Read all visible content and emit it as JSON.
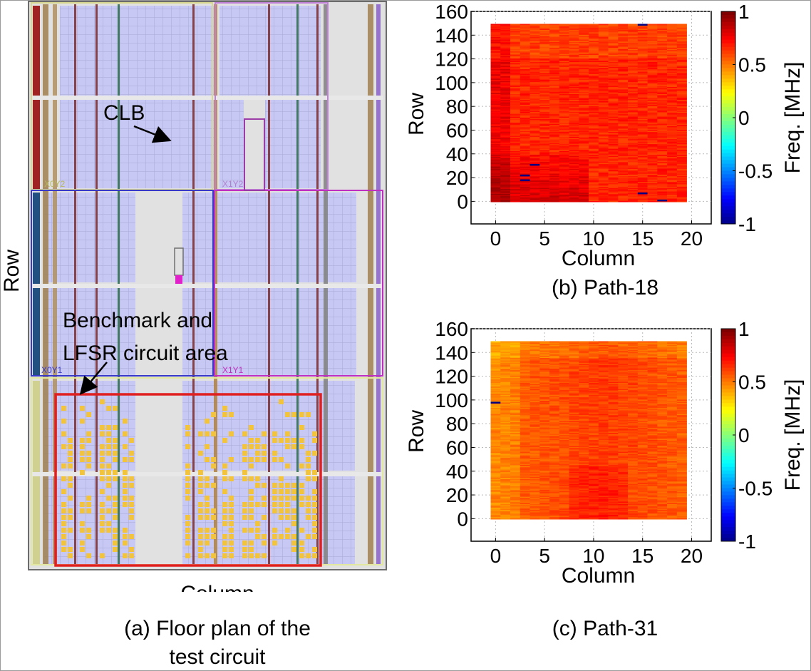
{
  "floorplan": {
    "ylabel": "Row",
    "xlabel": "Column",
    "caption_line1": "(a) Floor plan of the",
    "caption_line2": "test circuit",
    "clb_label": "CLB",
    "bench_line1": "Benchmark and",
    "bench_line2": "LFSR circuit area",
    "region_x0y2": "X0Y2",
    "region_x1y2": "X1Y2",
    "region_x0y1": "X0Y1",
    "region_x1y1": "X1Y1",
    "colors": {
      "clb": "#c8c8f4",
      "bg": "#e1e1e1",
      "highlight": "#e02020",
      "logic": "#f2c33c",
      "x0y2": "#d8d890",
      "x1y2": "#c080d8",
      "x0y1": "#3a3ac8",
      "x1y1": "#c030c0"
    }
  },
  "chart_data": [
    {
      "type": "heatmap",
      "caption": "(b) Path-18",
      "xlabel": "Column",
      "ylabel": "Row",
      "colorbar_label": "Freq. [MHz]",
      "x_range": [
        0,
        19
      ],
      "y_range": [
        0,
        149
      ],
      "xlim": [
        -2.5,
        22
      ],
      "ylim": [
        -19,
        160
      ],
      "xticks": [
        0,
        5,
        10,
        15,
        20
      ],
      "yticks": [
        0,
        20,
        40,
        60,
        80,
        100,
        120,
        140,
        160
      ],
      "clim": [
        -1,
        1
      ],
      "colorbar_ticks": [
        "1",
        "0.5",
        "0",
        "-0.5",
        "-1"
      ],
      "colorbar_values": [
        1,
        0.5,
        0,
        -0.5,
        -1
      ],
      "values": {
        "overall_mean": 0.68,
        "left_columns_mean": 0.8,
        "low_rows_bottom_left_mean": 0.9,
        "min": -1,
        "max": 0.95
      },
      "notes": "Mostly green (~0.6-0.75) with warmer yellow/orange values in low rows and leftmost columns; a few cells near -1 at (3,18),(3,22),(4,31),(15,149),(15,7),(17,1)"
    },
    {
      "type": "heatmap",
      "caption": "(c) Path-31",
      "xlabel": "Column",
      "ylabel": "Row",
      "colorbar_label": "Freq. [MHz]",
      "x_range": [
        0,
        19
      ],
      "y_range": [
        0,
        149
      ],
      "xlim": [
        -2.5,
        22
      ],
      "ylim": [
        -19,
        160
      ],
      "xticks": [
        0,
        5,
        10,
        15,
        20
      ],
      "yticks": [
        0,
        20,
        40,
        60,
        80,
        100,
        120,
        140,
        160
      ],
      "clim": [
        -1,
        1
      ],
      "colorbar_ticks": [
        "1",
        "0.5",
        "0",
        "-0.5",
        "-1"
      ],
      "colorbar_values": [
        1,
        0.5,
        0,
        -0.5,
        -1
      ],
      "values": {
        "overall_mean": 0.6,
        "left_columns_mean": 0.5,
        "center_mean": 0.68,
        "min": -1,
        "max": 0.85
      },
      "notes": "Cyan-green (~0.45-0.55) near edges and top, greener (~0.65-0.75) in centre columns 6-16; single dark cell at (0,98)"
    }
  ]
}
